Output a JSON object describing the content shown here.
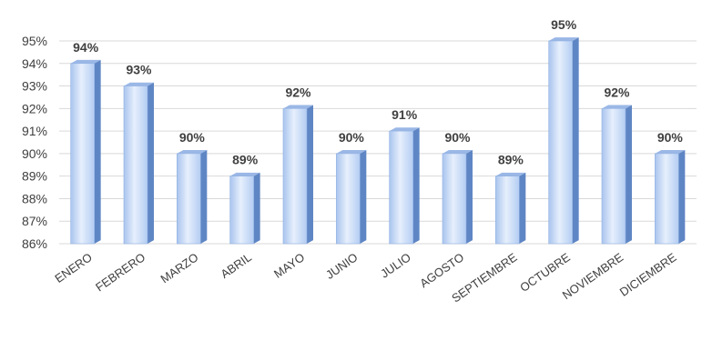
{
  "chart_data": {
    "type": "bar",
    "title": "",
    "xlabel": "",
    "ylabel": "",
    "categories": [
      "ENERO",
      "FEBRERO",
      "MARZO",
      "ABRIL",
      "MAYO",
      "JUNIO",
      "JULIO",
      "AGOSTO",
      "SEPTIEMBRE",
      "OCTUBRE",
      "NOVIEMBRE",
      "DICIEMBRE"
    ],
    "values": [
      94,
      93,
      90,
      89,
      92,
      90,
      91,
      90,
      89,
      95,
      92,
      90
    ],
    "data_labels": [
      "94%",
      "93%",
      "90%",
      "89%",
      "92%",
      "90%",
      "91%",
      "90%",
      "89%",
      "95%",
      "92%",
      "90%"
    ],
    "ylim": [
      86,
      95
    ],
    "y_ticks": [
      86,
      87,
      88,
      89,
      90,
      91,
      92,
      93,
      94,
      95
    ],
    "y_tick_labels": [
      "86%",
      "87%",
      "88%",
      "89%",
      "90%",
      "91%",
      "92%",
      "93%",
      "94%",
      "95%"
    ],
    "grid": true,
    "legend": "none",
    "style": "3d-cylinder-column",
    "colors": {
      "bar_front": "#bcd3f5",
      "bar_front_light": "#e4eefc",
      "bar_side": "#5f86c4",
      "bar_top": "#9ab7e6",
      "text": "#404040",
      "grid": "#d9d9d9"
    }
  }
}
